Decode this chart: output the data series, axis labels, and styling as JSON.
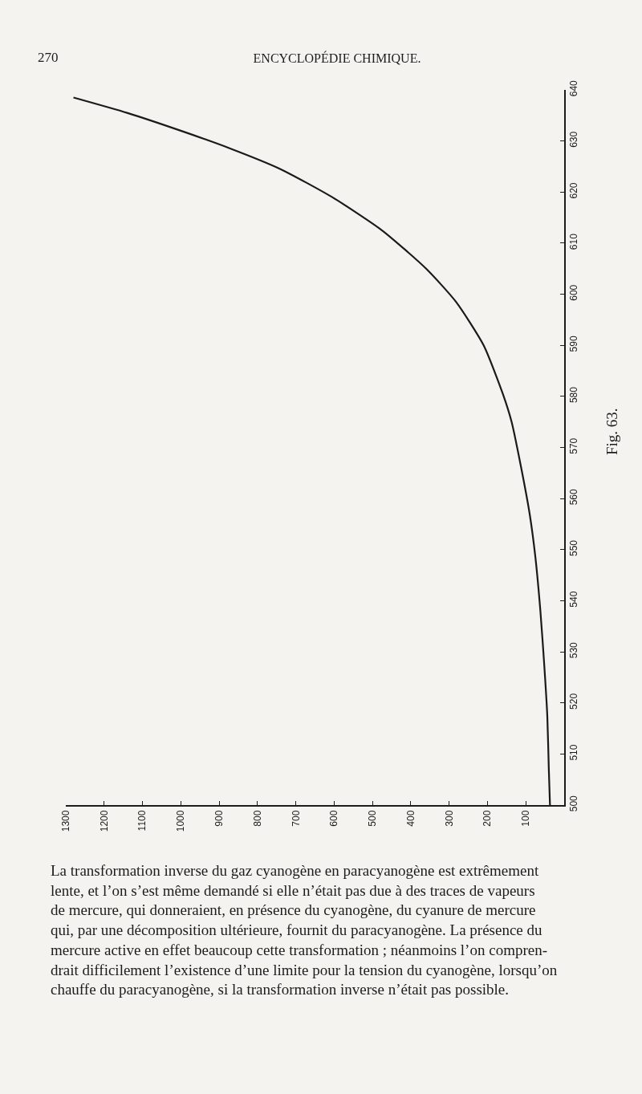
{
  "chart_data": {
    "type": "line",
    "title": "ENCYCLOPÉDIE CHIMIQUE.",
    "annotations": [
      "270",
      "Fig. 63.",
      "La transformation inverse du gaz cyanogène en paracyanogène est extrêmement\nlente, et l’on s’est même demandé si elle n’était pas due à des traces de vapeurs\nde mercure, qui donneraient, en présence du cyanogène, du cyanure de mercure\nqui, par une décomposition ultérieure, fournit du paracyanogène. La présence du\nmercure active en effet beaucoup cette transformation ; néanmoins l’on compren-\ndrait difficilement l’existence d’une limite pour la tension du cyanogène, lorsqu’on\nchauffe du paracyanogène, si la transformation inverse n’était pas possible."
    ],
    "x": [
      1280,
      1140,
      1000,
      870,
      740,
      605,
      475,
      360,
      282,
      210,
      160,
      137,
      112,
      90,
      75,
      62,
      52,
      44,
      40,
      37
    ],
    "values": [
      638.5,
      635.5,
      632,
      628.5,
      624.5,
      619,
      612.5,
      605,
      598.5,
      590,
      580.5,
      575,
      566,
      557,
      548.5,
      538,
      527.5,
      517.5,
      507,
      500
    ],
    "color": "#1a1a1a",
    "xlim": [
      1300,
      0
    ],
    "xticks": [
      1300,
      1200,
      1100,
      1000,
      900,
      800,
      700,
      600,
      500,
      400,
      300,
      200,
      100
    ],
    "ylim": [
      500,
      640
    ],
    "yticks": [
      500,
      510,
      520,
      530,
      540,
      550,
      560,
      570,
      580,
      590,
      600,
      610,
      620,
      630,
      640
    ]
  }
}
